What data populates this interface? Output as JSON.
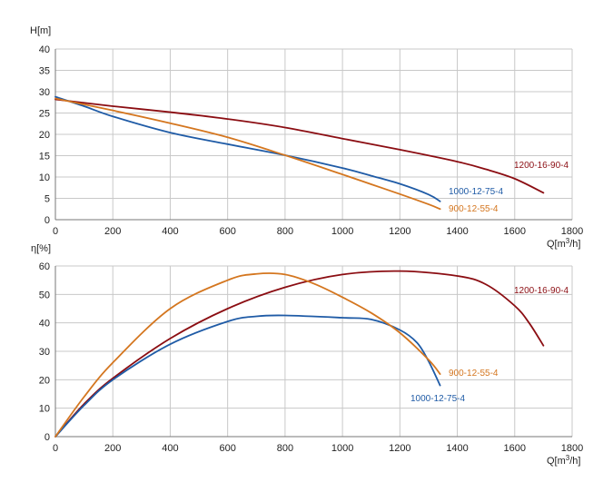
{
  "chart_data": [
    {
      "type": "line",
      "title": "",
      "ylabel": "H[m]",
      "xlabel_main": "Q[m",
      "xlabel_sup": "3",
      "xlabel_end": "/h]",
      "xlim": [
        0,
        1800
      ],
      "ylim": [
        0,
        40
      ],
      "x_ticks": [
        "0",
        "200",
        "400",
        "600",
        "800",
        "1000",
        "1200",
        "1400",
        "1600",
        "1800"
      ],
      "y_ticks": [
        "0",
        "5",
        "10",
        "15",
        "20",
        "25",
        "30",
        "35",
        "40"
      ],
      "grid": true,
      "series": [
        {
          "name": "1200-16-90-4",
          "color": "#8b0d12",
          "points": [
            [
              0,
              28.2
            ],
            [
              200,
              26.6
            ],
            [
              400,
              25.2
            ],
            [
              600,
              23.6
            ],
            [
              800,
              21.6
            ],
            [
              1000,
              19.0
            ],
            [
              1200,
              16.4
            ],
            [
              1400,
              13.6
            ],
            [
              1500,
              11.8
            ],
            [
              1600,
              9.6
            ],
            [
              1700,
              6.3
            ]
          ]
        },
        {
          "name": "1000-12-75-4",
          "color": "#1f5ba6",
          "points": [
            [
              0,
              28.8
            ],
            [
              100,
              26.6
            ],
            [
              200,
              24.2
            ],
            [
              400,
              20.4
            ],
            [
              600,
              17.7
            ],
            [
              800,
              15.1
            ],
            [
              1000,
              12.1
            ],
            [
              1100,
              10.3
            ],
            [
              1200,
              8.4
            ],
            [
              1300,
              5.9
            ],
            [
              1340,
              4.3
            ]
          ]
        },
        {
          "name": "900-12-55-4",
          "color": "#d4761f",
          "points": [
            [
              0,
              28.4
            ],
            [
              200,
              25.6
            ],
            [
              400,
              22.6
            ],
            [
              600,
              19.3
            ],
            [
              800,
              15.1
            ],
            [
              1000,
              10.6
            ],
            [
              1100,
              8.3
            ],
            [
              1200,
              6.0
            ],
            [
              1300,
              3.6
            ],
            [
              1340,
              2.5
            ]
          ]
        }
      ]
    },
    {
      "type": "line",
      "title": "",
      "ylabel": "η[%]",
      "xlabel_main": "Q[m",
      "xlabel_sup": "3",
      "xlabel_end": "/h]",
      "xlim": [
        0,
        1800
      ],
      "ylim": [
        0,
        60
      ],
      "x_ticks": [
        "0",
        "200",
        "400",
        "600",
        "800",
        "1000",
        "1200",
        "1400",
        "1600",
        "1800"
      ],
      "y_ticks": [
        "0",
        "10",
        "20",
        "30",
        "40",
        "50",
        "60"
      ],
      "grid": true,
      "series": [
        {
          "name": "1200-16-90-4",
          "color": "#8b0d12",
          "points": [
            [
              0,
              0
            ],
            [
              100,
              11.5
            ],
            [
              200,
              20.5
            ],
            [
              400,
              34.5
            ],
            [
              600,
              45.0
            ],
            [
              800,
              52.5
            ],
            [
              1000,
              57.0
            ],
            [
              1200,
              58.2
            ],
            [
              1400,
              56.5
            ],
            [
              1500,
              53.5
            ],
            [
              1600,
              46.0
            ],
            [
              1650,
              40.0
            ],
            [
              1700,
              32.0
            ]
          ]
        },
        {
          "name": "1000-12-75-4",
          "color": "#1f5ba6",
          "points": [
            [
              0,
              0
            ],
            [
              100,
              11.0
            ],
            [
              200,
              20.0
            ],
            [
              400,
              32.5
            ],
            [
              600,
              40.5
            ],
            [
              700,
              42.3
            ],
            [
              800,
              42.6
            ],
            [
              1000,
              41.8
            ],
            [
              1100,
              41.2
            ],
            [
              1200,
              37.5
            ],
            [
              1260,
              33.0
            ],
            [
              1300,
              26.5
            ],
            [
              1340,
              18.0
            ]
          ]
        },
        {
          "name": "900-12-55-4",
          "color": "#d4761f",
          "points": [
            [
              0,
              0
            ],
            [
              100,
              14.0
            ],
            [
              200,
              26.0
            ],
            [
              400,
              45.0
            ],
            [
              600,
              55.0
            ],
            [
              700,
              57.2
            ],
            [
              800,
              57.0
            ],
            [
              900,
              53.8
            ],
            [
              1000,
              49.0
            ],
            [
              1100,
              43.5
            ],
            [
              1200,
              36.5
            ],
            [
              1300,
              27.0
            ],
            [
              1340,
              22.0
            ]
          ]
        }
      ]
    }
  ]
}
